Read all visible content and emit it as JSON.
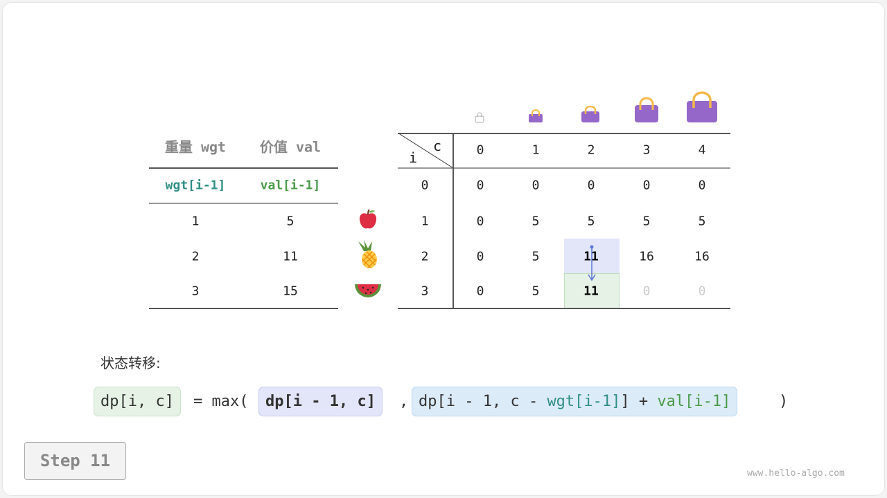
{
  "left_table": {
    "headers": [
      "重量 wgt",
      "价值 val"
    ],
    "subheaders": [
      "wgt[i-1]",
      "val[i-1]"
    ],
    "rows": [
      [
        "1",
        "5"
      ],
      [
        "2",
        "11"
      ],
      [
        "3",
        "15"
      ]
    ],
    "items": [
      "apple-icon",
      "pineapple-icon",
      "watermelon-icon"
    ]
  },
  "dp_table": {
    "corner_row": "i",
    "corner_col": "c",
    "col_headers": [
      "0",
      "1",
      "2",
      "3",
      "4"
    ],
    "row_headers": [
      "0",
      "1",
      "2",
      "3"
    ],
    "rows": [
      [
        "0",
        "0",
        "0",
        "0",
        "0"
      ],
      [
        "0",
        "5",
        "5",
        "5",
        "5"
      ],
      [
        "0",
        "5",
        "11",
        "16",
        "16"
      ],
      [
        "0",
        "5",
        "11",
        "0",
        "0"
      ]
    ],
    "highlight_source": "dp[2][2]",
    "highlight_target": "dp[3][2]"
  },
  "transition": {
    "label": "状态转移:",
    "lhs": "dp[i, c]",
    "eq": "= max(",
    "arg1": "dp[i - 1, c]",
    "comma": ",",
    "arg2_prefix": "dp[i - 1, c - ",
    "arg2_wgt": "wgt[i-1]",
    "arg2_mid": "] + ",
    "arg2_val": "val[i-1]",
    "close": ")"
  },
  "step": "Step 11",
  "watermark": "www.hello-algo.com",
  "colors": {
    "bag": "#9467c9",
    "handle": "#f5b94a",
    "source": "#e3e6f8",
    "target": "#e5f2e5",
    "arg2": "#dcebf8",
    "teal": "#2f8f85",
    "green": "#4a9a4a"
  }
}
